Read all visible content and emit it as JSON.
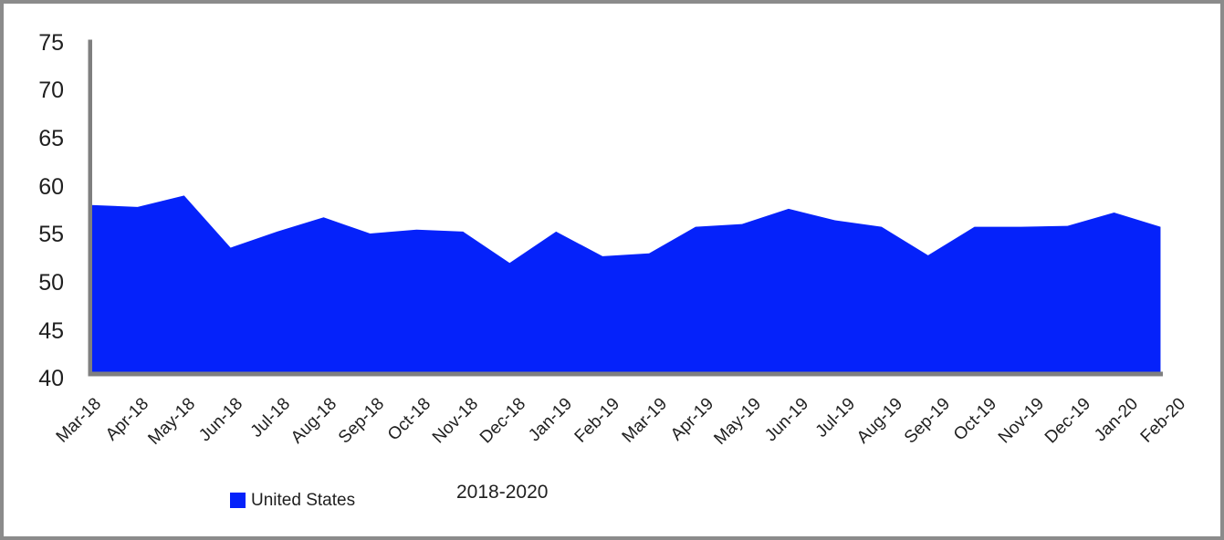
{
  "chart_data": {
    "type": "area",
    "title": "",
    "categories": [
      "Mar-18",
      "Apr-18",
      "May-18",
      "Jun-18",
      "Jul-18",
      "Aug-18",
      "Sep-18",
      "Oct-18",
      "Nov-18",
      "Dec-18",
      "Jan-19",
      "Feb-19",
      "Mar-19",
      "Apr-19",
      "May-19",
      "Jun-19",
      "Jul-19",
      "Aug-19",
      "Sep-19",
      "Oct-19",
      "Nov-19",
      "Dec-19",
      "Jan-20",
      "Feb-20"
    ],
    "series": [
      {
        "name": "United States",
        "values": [
          57.8,
          57.6,
          58.8,
          53.3,
          55.0,
          56.5,
          54.8,
          55.2,
          55.0,
          51.7,
          55.0,
          52.4,
          52.7,
          55.5,
          55.8,
          57.4,
          56.2,
          55.5,
          52.5,
          55.5,
          55.5,
          55.6,
          57.0,
          55.5
        ]
      }
    ],
    "xlabel": "",
    "ylabel": "",
    "ylim": [
      40,
      75
    ],
    "yticks": [
      75,
      70,
      65,
      60,
      55,
      50,
      45,
      40
    ],
    "x_tick_rotation_deg": 45,
    "grid": false,
    "legend_position": "bottom",
    "colors": {
      "area_fill": "#0522fa",
      "axis_line": "#7f7f7f",
      "label_text": "#1f1f1f",
      "frame_border": "#8b8b8b"
    }
  },
  "legend": {
    "items": [
      {
        "label": "United States",
        "swatch_color": "#0522fa"
      }
    ]
  },
  "annotation": {
    "text": "2018-2020"
  }
}
